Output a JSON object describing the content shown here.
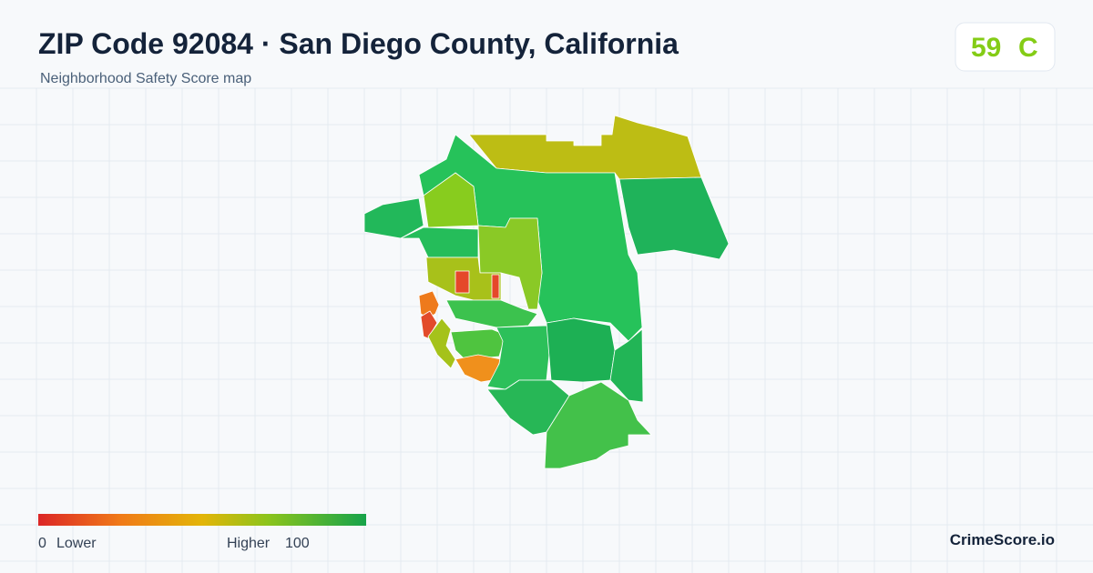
{
  "header": {
    "title": "ZIP Code 92084 · San Diego County, California",
    "subtitle": "Neighborhood Safety Score map",
    "score": 59,
    "grade": "C"
  },
  "legend": {
    "min": 0,
    "min_label": "Lower",
    "max_label": "Higher",
    "max": 100
  },
  "footer": {
    "brand": "CrimeScore.io"
  }
}
